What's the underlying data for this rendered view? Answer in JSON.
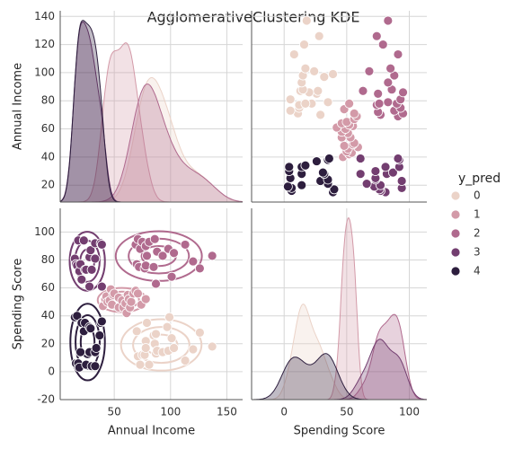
{
  "chart_data": {
    "type": "pairplot",
    "title": "AgglomerativeClustering KDE",
    "variables": [
      "Annual Income",
      "Spending Score"
    ],
    "legend_title": "y_pred",
    "xlim": [
      [
        2,
        164
      ],
      [
        -26,
        114
      ]
    ],
    "xticks": [
      [
        50,
        100,
        150
      ],
      [
        0,
        50,
        100
      ]
    ],
    "ylim": [
      [
        8,
        144
      ],
      [
        -20,
        117
      ]
    ],
    "yticks": [
      [
        20,
        40,
        60,
        80,
        100,
        120,
        140
      ],
      [
        -20,
        0,
        20,
        40,
        60,
        80,
        100
      ]
    ],
    "grid": true,
    "series": [
      {
        "name": "0",
        "color": "#ebd3c8",
        "income": [
          70,
          71,
          73,
          75,
          77,
          78,
          78,
          79,
          81,
          85,
          86,
          87,
          87,
          88,
          93,
          97,
          98,
          99,
          101,
          103,
          113,
          120,
          126,
          137
        ],
        "score": [
          29,
          11,
          5,
          12,
          12,
          22,
          17,
          35,
          5,
          26,
          20,
          27,
          13,
          15,
          14,
          32,
          15,
          39,
          24,
          17,
          8,
          16,
          28,
          18
        ]
      },
      {
        "name": "1",
        "color": "#d39aa8",
        "income": [
          40,
          42,
          43,
          44,
          46,
          47,
          48,
          49,
          50,
          54,
          54,
          57,
          58,
          60,
          61,
          62,
          63,
          64,
          65,
          67,
          69,
          71,
          74,
          78
        ],
        "score": [
          47,
          52,
          54,
          50,
          51,
          59,
          48,
          55,
          56,
          46,
          53,
          51,
          46,
          49,
          42,
          55,
          52,
          46,
          50,
          56,
          58,
          56,
          48,
          52
        ]
      },
      {
        "name": "2",
        "color": "#b06a8e",
        "income": [
          69,
          70,
          71,
          72,
          73,
          75,
          77,
          78,
          78,
          79,
          81,
          85,
          86,
          87,
          88,
          93,
          98,
          101,
          103,
          113,
          120,
          126,
          137
        ],
        "score": [
          91,
          77,
          95,
          75,
          88,
          93,
          74,
          90,
          76,
          83,
          93,
          75,
          95,
          63,
          86,
          83,
          88,
          68,
          85,
          91,
          79,
          74,
          83
        ]
      },
      {
        "name": "3",
        "color": "#733e70",
        "income": [
          15,
          16,
          17,
          18,
          19,
          20,
          21,
          23,
          24,
          25,
          28,
          28,
          29,
          30,
          33,
          33,
          38,
          39,
          39
        ],
        "score": [
          81,
          77,
          76,
          94,
          72,
          77,
          66,
          94,
          73,
          73,
          82,
          61,
          87,
          73,
          92,
          81,
          92,
          91,
          61
        ]
      },
      {
        "name": "4",
        "color": "#2d1e3e",
        "income": [
          15,
          16,
          17,
          18,
          19,
          20,
          21,
          23,
          24,
          25,
          28,
          28,
          29,
          30,
          33,
          33,
          34,
          37,
          38,
          39
        ],
        "score": [
          39,
          6,
          40,
          6,
          3,
          14,
          35,
          29,
          35,
          5,
          14,
          32,
          31,
          4,
          4,
          14,
          17,
          26,
          35,
          36
        ]
      }
    ]
  }
}
